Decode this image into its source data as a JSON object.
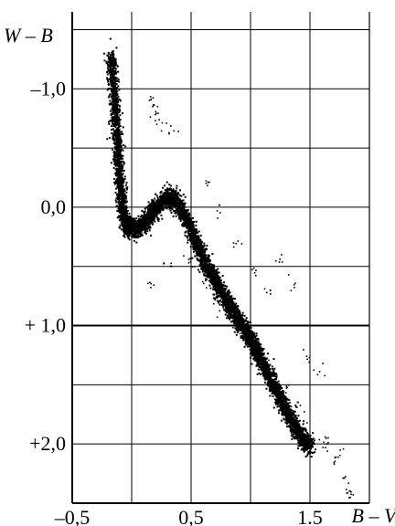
{
  "chart_data": {
    "type": "scatter",
    "title": "",
    "xlabel": "B – V",
    "ylabel": "W – B",
    "xlim": [
      -0.5,
      2.0
    ],
    "ylim": [
      2.5,
      -1.65
    ],
    "y_inverted": true,
    "grid": true,
    "x_ticks": [
      {
        "value": -0.5,
        "label": "–0,5"
      },
      {
        "value": 0.5,
        "label": "0,5"
      },
      {
        "value": 1.5,
        "label": "1.5"
      }
    ],
    "y_ticks": [
      {
        "value": -1.0,
        "label": "–1,0"
      },
      {
        "value": 0.0,
        "label": "0,0"
      },
      {
        "value": 1.0,
        "label": "+ 1,0"
      },
      {
        "value": 2.0,
        "label": "+2,0"
      }
    ],
    "x_gridlines": [
      0.0,
      0.5,
      1.0,
      1.5,
      2.0
    ],
    "y_gridlines": [
      -1.5,
      -1.0,
      -0.5,
      0.0,
      0.5,
      1.0,
      1.5,
      2.0
    ],
    "emphasized_gridline_y": 1.0,
    "point_color": "#000000",
    "series": [
      {
        "values": [
          [
            -0.18,
            -1.28
          ],
          [
            -0.17,
            -1.18
          ],
          [
            -0.16,
            -1.03
          ],
          [
            -0.15,
            -0.88
          ],
          [
            -0.14,
            -0.72
          ],
          [
            -0.13,
            -0.58
          ],
          [
            -0.12,
            -0.45
          ],
          [
            -0.11,
            -0.31
          ],
          [
            -0.1,
            -0.18
          ],
          [
            -0.09,
            -0.06
          ],
          [
            -0.08,
            0.05
          ],
          [
            -0.06,
            0.12
          ],
          [
            -0.03,
            0.17
          ],
          [
            0.0,
            0.18
          ],
          [
            0.05,
            0.17
          ],
          [
            0.1,
            0.13
          ],
          [
            0.15,
            0.06
          ],
          [
            0.2,
            -0.01
          ],
          [
            0.25,
            -0.06
          ],
          [
            0.3,
            -0.09
          ],
          [
            0.35,
            -0.07
          ],
          [
            0.4,
            0.0
          ],
          [
            0.45,
            0.1
          ],
          [
            0.5,
            0.21
          ],
          [
            0.55,
            0.32
          ],
          [
            0.6,
            0.43
          ],
          [
            0.65,
            0.53
          ],
          [
            0.7,
            0.62
          ],
          [
            0.75,
            0.71
          ],
          [
            0.8,
            0.8
          ],
          [
            0.85,
            0.88
          ],
          [
            0.9,
            0.96
          ],
          [
            0.95,
            1.04
          ],
          [
            1.0,
            1.12
          ],
          [
            1.05,
            1.22
          ],
          [
            1.1,
            1.32
          ],
          [
            1.15,
            1.42
          ],
          [
            1.2,
            1.52
          ],
          [
            1.25,
            1.62
          ],
          [
            1.3,
            1.72
          ],
          [
            1.35,
            1.82
          ],
          [
            1.4,
            1.91
          ],
          [
            1.45,
            1.98
          ],
          [
            1.5,
            2.01
          ]
        ]
      },
      {
        "values": [
          [
            0.15,
            -0.92
          ],
          [
            0.18,
            -0.86
          ],
          [
            0.2,
            -0.78
          ],
          [
            0.25,
            -0.71
          ],
          [
            0.31,
            -0.66
          ],
          [
            0.5,
            0.45
          ],
          [
            0.6,
            0.65
          ],
          [
            0.72,
            0.83
          ],
          [
            0.85,
            0.96
          ],
          [
            0.92,
            1.08
          ],
          [
            1.05,
            1.22
          ],
          [
            1.12,
            1.3
          ],
          [
            1.2,
            1.42
          ],
          [
            1.28,
            1.52
          ],
          [
            1.37,
            1.67
          ],
          [
            1.44,
            1.8
          ],
          [
            1.51,
            1.93
          ],
          [
            1.6,
            2.04
          ],
          [
            1.7,
            2.14
          ],
          [
            1.78,
            2.28
          ],
          [
            1.82,
            2.38
          ],
          [
            1.84,
            2.42
          ],
          [
            1.15,
            0.71
          ],
          [
            1.02,
            0.54
          ],
          [
            1.48,
            1.28
          ],
          [
            1.57,
            1.39
          ],
          [
            1.24,
            0.45
          ],
          [
            1.34,
            0.66
          ],
          [
            0.62,
            -0.21
          ],
          [
            0.73,
            0.02
          ],
          [
            0.88,
            0.28
          ],
          [
            0.14,
            0.64
          ],
          [
            0.3,
            0.51
          ],
          [
            0.47,
            0.41
          ],
          [
            1.65,
            1.97
          ],
          [
            1.74,
            2.07
          ]
        ]
      }
    ]
  }
}
